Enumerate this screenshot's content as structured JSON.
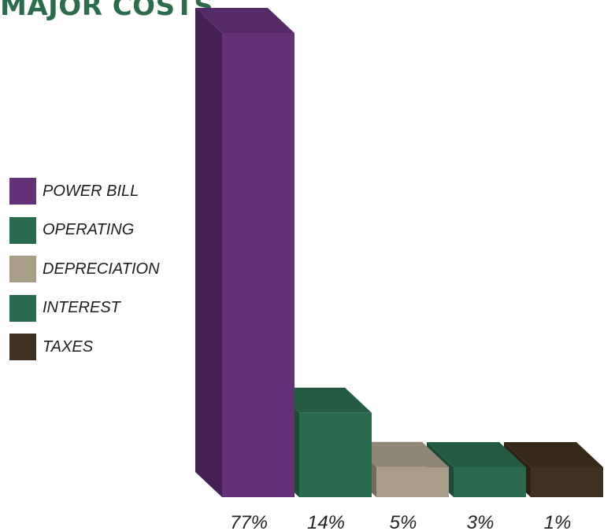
{
  "chart_data": {
    "type": "bar",
    "title": "MAJOR COSTS",
    "categories": [
      "POWER BILL",
      "OPERATING",
      "DEPRECIATION",
      "INTEREST",
      "TAXES"
    ],
    "values": [
      77,
      14,
      5,
      3,
      1
    ],
    "value_labels": [
      "77%",
      "14%",
      "5%",
      "3%",
      "1%"
    ],
    "unit": "%",
    "ylim": [
      0,
      77
    ],
    "grid": false,
    "legend_position": "left",
    "style": "3d",
    "colors": [
      "#643179",
      "#2a6b4f",
      "#a89e87",
      "#2a6b4f",
      "#40301f"
    ]
  }
}
